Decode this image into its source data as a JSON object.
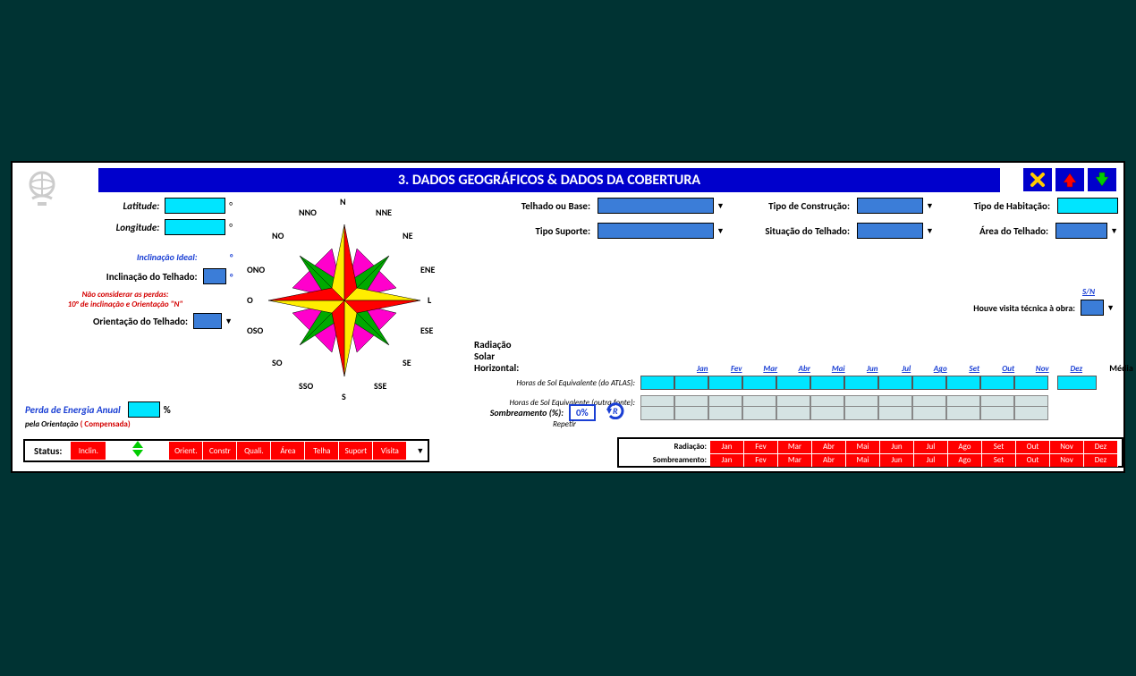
{
  "header": {
    "title": "3.  DADOS GEOGRÁFICOS   &   DADOS DA COBERTURA"
  },
  "left": {
    "latitude_label": "Latitude:",
    "longitude_label": "Longitude:",
    "inclinacao_ideal_label": "Inclinação Ideal:",
    "inclinacao_telhado_label": "Inclinação do Telhado:",
    "nao_considerar_1": "Não considerar as perdas:",
    "nao_considerar_2": "10° de inclinação e Orientação  \"N\"",
    "orientacao_telhado_label": "Orientação do Telhado:",
    "perda_label": "Perda de Energia Anual",
    "perda_pct": "%",
    "perda_sub_a": "pela Orientação",
    "perda_sub_b": "( Compensada)"
  },
  "compass_labels": [
    "N",
    "NNE",
    "NE",
    "ENE",
    "L",
    "ESE",
    "SE",
    "SSE",
    "S",
    "SSO",
    "SO",
    "OSO",
    "O",
    "ONO",
    "NO",
    "NNO"
  ],
  "mid": {
    "telhado_label": "Telhado ou Base:",
    "tipo_suporte_label": "Tipo Suporte:"
  },
  "right": {
    "tipo_construcao_label": "Tipo de Construção:",
    "situacao_telhado_label": "Situação do Telhado:"
  },
  "right2": {
    "tipo_habitacao_label": "Tipo de Habitação:",
    "area_telhado_label": "Área  do Telhado:",
    "sn_label": "S/N",
    "visita_label": "Houve visita técnica à obra:"
  },
  "radiation": {
    "title": "Radiação Solar Horizontal:",
    "atlas_label": "Horas de Sol Equivalente (do ATLAS):",
    "outra_label": "Horas de Sol Equivalente (outra fonte):",
    "media_label": "Média",
    "months": [
      "Jan",
      "Fev",
      "Mar",
      "Abr",
      "Mai",
      "Jun",
      "Jul",
      "Ago",
      "Set",
      "Out",
      "Nov",
      "Dez"
    ]
  },
  "sombreamento": {
    "label": "Sombreamento (%):",
    "value": "0%",
    "repetir": "Repetir"
  },
  "status": {
    "label": "Status:",
    "items": [
      "Inclin.",
      "Orient.",
      "Constr",
      "Quali.",
      "Área",
      "Telha",
      "Suport",
      "Visita"
    ]
  },
  "rad_status": {
    "radiacao_label": "Radiação:",
    "sombreamento_label": "Sombreamento:",
    "months": [
      "Jan",
      "Fev",
      "Mar",
      "Abr",
      "Mai",
      "Jun",
      "Jul",
      "Ago",
      "Set",
      "Out",
      "Nov",
      "Dez"
    ]
  },
  "colors": {
    "header_bg": "#0000cc",
    "cyan": "#00e5ff",
    "blue_field": "#3b7dd8",
    "red": "#ff0000",
    "gray_cell": "#d5e3e3"
  }
}
